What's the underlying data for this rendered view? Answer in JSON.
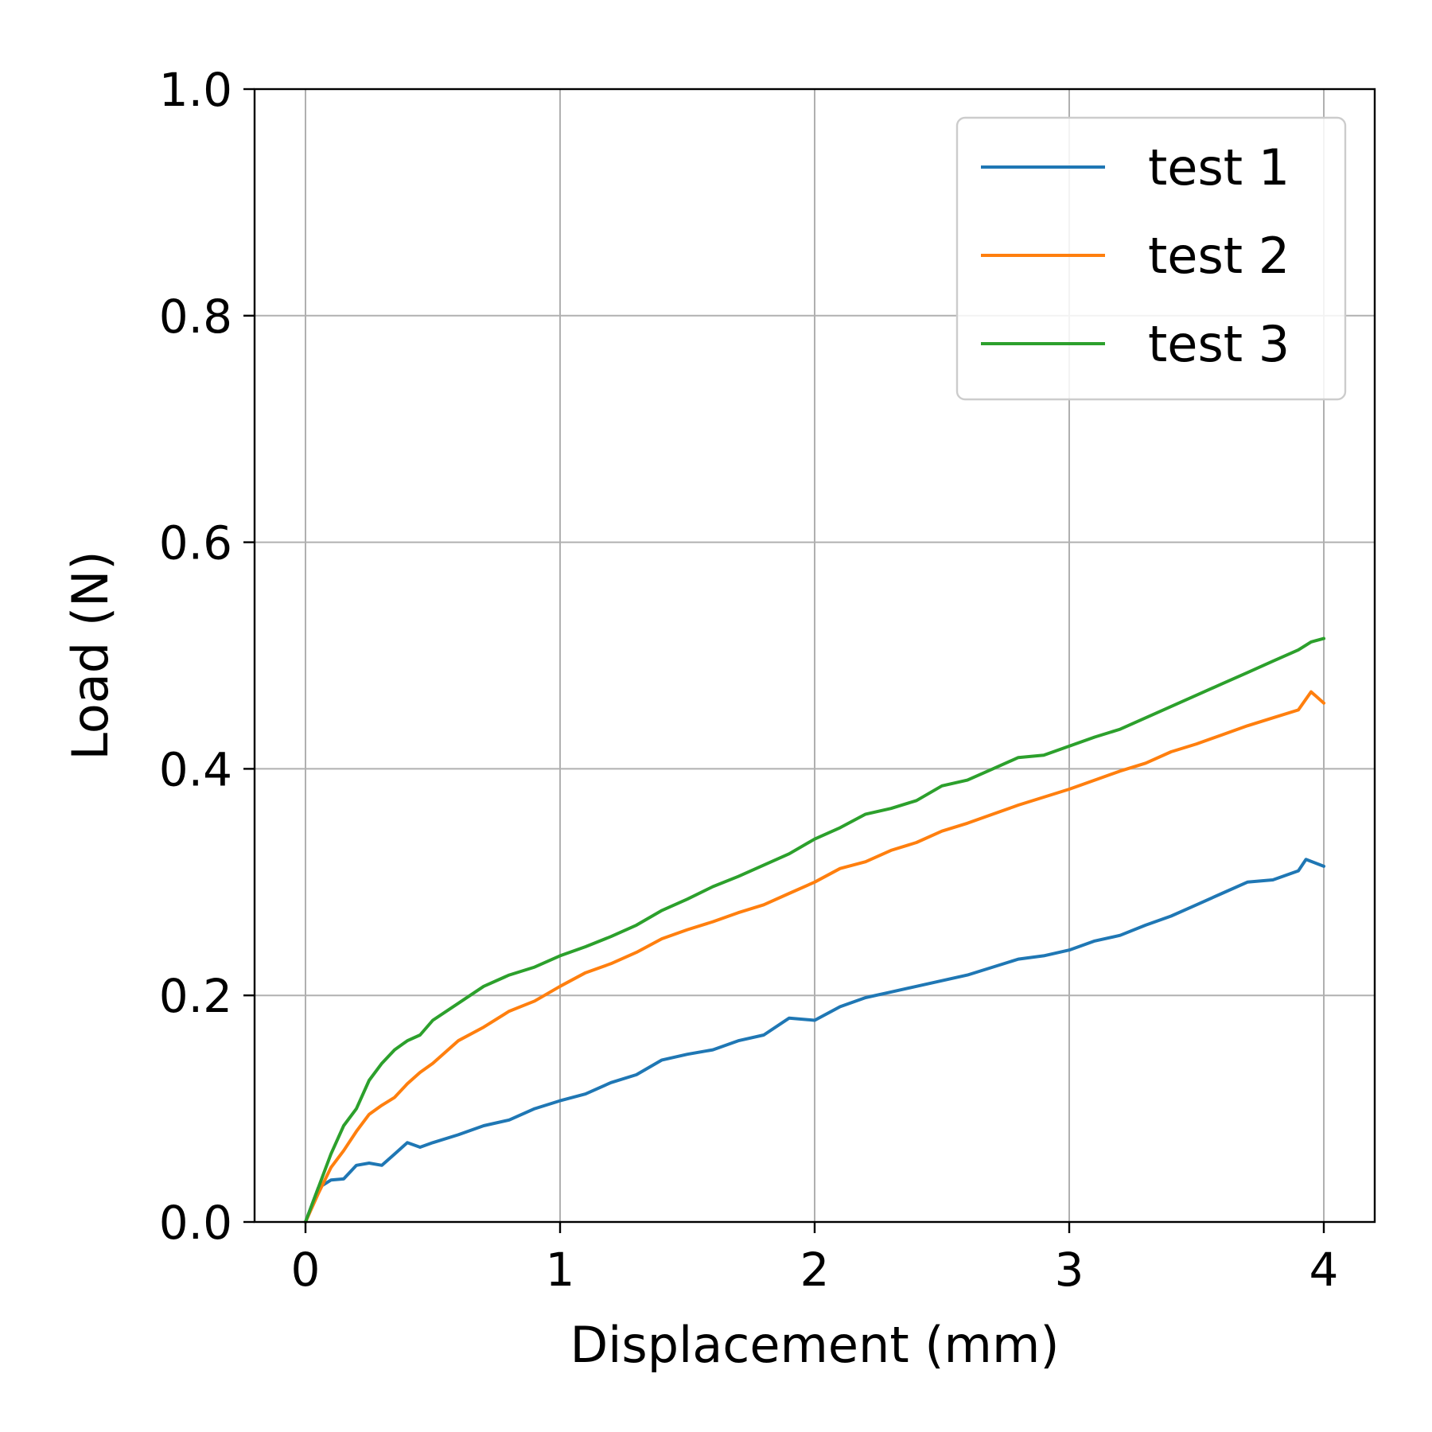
{
  "chart_data": {
    "type": "line",
    "title": "",
    "xlabel": "Displacement (mm)",
    "ylabel": "Load (N)",
    "xlim": [
      -0.2,
      4.2
    ],
    "ylim": [
      0.0,
      1.0
    ],
    "xticks": [
      0,
      1,
      2,
      3,
      4
    ],
    "xtick_labels": [
      "0",
      "1",
      "2",
      "3",
      "4"
    ],
    "yticks": [
      0.0,
      0.2,
      0.4,
      0.6,
      0.8,
      1.0
    ],
    "ytick_labels": [
      "0.0",
      "0.2",
      "0.4",
      "0.6",
      "0.8",
      "1.0"
    ],
    "grid": true,
    "legend_position": "top-right",
    "series": [
      {
        "name": "test 1",
        "color": "#1f77b4",
        "x": [
          0,
          0.05,
          0.1,
          0.15,
          0.2,
          0.25,
          0.3,
          0.35,
          0.4,
          0.45,
          0.5,
          0.6,
          0.7,
          0.8,
          0.9,
          1.0,
          1.1,
          1.2,
          1.3,
          1.4,
          1.5,
          1.6,
          1.7,
          1.8,
          1.9,
          2.0,
          2.1,
          2.2,
          2.3,
          2.4,
          2.5,
          2.6,
          2.7,
          2.8,
          2.9,
          3.0,
          3.1,
          3.2,
          3.3,
          3.4,
          3.5,
          3.6,
          3.7,
          3.8,
          3.9,
          3.93,
          4.0
        ],
        "values": [
          0.0,
          0.03,
          0.037,
          0.038,
          0.05,
          0.052,
          0.05,
          0.06,
          0.07,
          0.066,
          0.07,
          0.077,
          0.085,
          0.09,
          0.1,
          0.107,
          0.113,
          0.123,
          0.13,
          0.143,
          0.148,
          0.152,
          0.16,
          0.165,
          0.18,
          0.178,
          0.19,
          0.198,
          0.203,
          0.208,
          0.213,
          0.218,
          0.225,
          0.232,
          0.235,
          0.24,
          0.248,
          0.253,
          0.262,
          0.27,
          0.28,
          0.29,
          0.3,
          0.302,
          0.31,
          0.32,
          0.314
        ]
      },
      {
        "name": "test 2",
        "color": "#ff7f0e",
        "x": [
          0,
          0.05,
          0.1,
          0.15,
          0.2,
          0.25,
          0.3,
          0.35,
          0.4,
          0.45,
          0.5,
          0.6,
          0.7,
          0.8,
          0.9,
          1.0,
          1.1,
          1.2,
          1.3,
          1.4,
          1.5,
          1.6,
          1.7,
          1.8,
          1.9,
          2.0,
          2.1,
          2.2,
          2.3,
          2.4,
          2.5,
          2.6,
          2.7,
          2.8,
          2.9,
          3.0,
          3.1,
          3.2,
          3.3,
          3.4,
          3.5,
          3.6,
          3.7,
          3.8,
          3.9,
          3.95,
          4.0
        ],
        "values": [
          0.0,
          0.025,
          0.048,
          0.063,
          0.08,
          0.095,
          0.103,
          0.11,
          0.122,
          0.132,
          0.14,
          0.16,
          0.172,
          0.186,
          0.195,
          0.208,
          0.22,
          0.228,
          0.238,
          0.25,
          0.258,
          0.265,
          0.273,
          0.28,
          0.29,
          0.3,
          0.312,
          0.318,
          0.328,
          0.335,
          0.345,
          0.352,
          0.36,
          0.368,
          0.375,
          0.382,
          0.39,
          0.398,
          0.405,
          0.415,
          0.422,
          0.43,
          0.438,
          0.445,
          0.452,
          0.468,
          0.458
        ]
      },
      {
        "name": "test 3",
        "color": "#2ca02c",
        "x": [
          0,
          0.05,
          0.1,
          0.15,
          0.2,
          0.25,
          0.3,
          0.35,
          0.4,
          0.45,
          0.5,
          0.6,
          0.7,
          0.8,
          0.9,
          1.0,
          1.1,
          1.2,
          1.3,
          1.4,
          1.5,
          1.6,
          1.7,
          1.8,
          1.9,
          2.0,
          2.1,
          2.2,
          2.3,
          2.4,
          2.5,
          2.6,
          2.7,
          2.8,
          2.9,
          3.0,
          3.1,
          3.2,
          3.3,
          3.4,
          3.5,
          3.6,
          3.7,
          3.8,
          3.9,
          3.95,
          4.0
        ],
        "values": [
          0.0,
          0.03,
          0.06,
          0.085,
          0.1,
          0.125,
          0.14,
          0.152,
          0.16,
          0.165,
          0.178,
          0.193,
          0.208,
          0.218,
          0.225,
          0.235,
          0.243,
          0.252,
          0.262,
          0.275,
          0.285,
          0.296,
          0.305,
          0.315,
          0.325,
          0.338,
          0.348,
          0.36,
          0.365,
          0.372,
          0.385,
          0.39,
          0.4,
          0.41,
          0.412,
          0.42,
          0.428,
          0.435,
          0.445,
          0.455,
          0.465,
          0.475,
          0.485,
          0.495,
          0.505,
          0.512,
          0.515
        ]
      }
    ]
  }
}
